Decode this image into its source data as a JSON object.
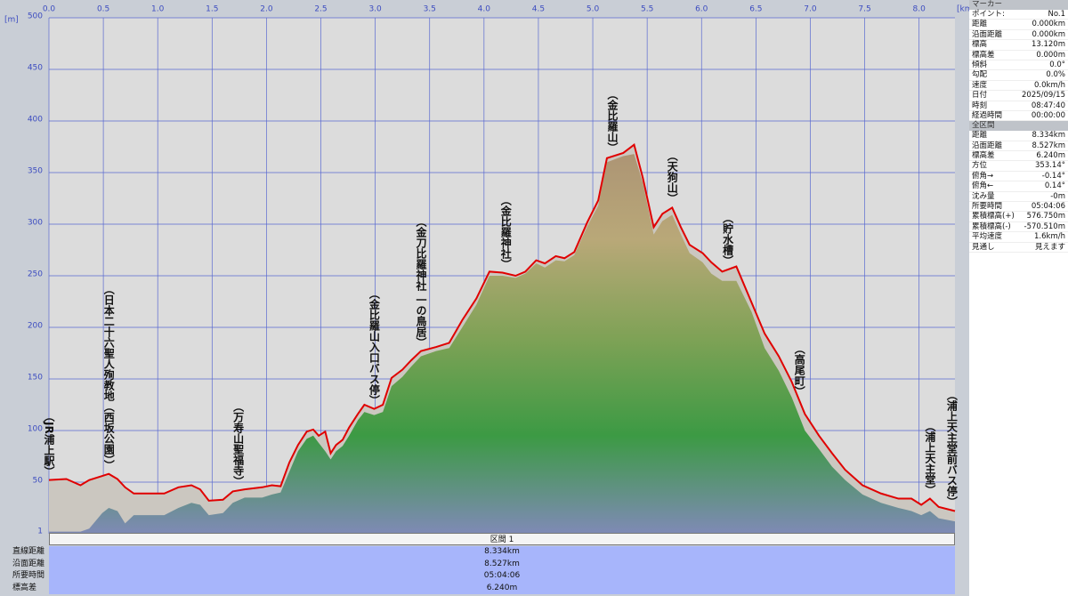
{
  "chart_data": {
    "type": "line",
    "x_unit": "[km]",
    "y_unit": "[m]",
    "x": [
      0,
      0.16,
      0.29,
      0.37,
      0.49,
      0.55,
      0.63,
      0.7,
      0.78,
      0.9,
      1.06,
      1.19,
      1.31,
      1.39,
      1.47,
      1.6,
      1.69,
      1.8,
      1.96,
      2.05,
      2.13,
      2.21,
      2.29,
      2.37,
      2.43,
      2.48,
      2.54,
      2.59,
      2.64,
      2.7,
      2.76,
      2.84,
      2.9,
      2.99,
      3.07,
      3.15,
      3.25,
      3.33,
      3.42,
      3.56,
      3.68,
      3.8,
      3.93,
      4.05,
      4.17,
      4.29,
      4.38,
      4.48,
      4.56,
      4.66,
      4.74,
      4.83,
      4.95,
      5.05,
      5.13,
      5.28,
      5.38,
      5.46,
      5.56,
      5.64,
      5.73,
      5.81,
      5.89,
      6.01,
      6.09,
      6.19,
      6.32,
      6.46,
      6.58,
      6.71,
      6.83,
      6.95,
      7.08,
      7.2,
      7.32,
      7.48,
      7.65,
      7.81,
      7.93,
      8.02,
      8.1,
      8.18,
      8.33
    ],
    "series": [
      {
        "color": "#e00000",
        "area_color": "#cbc7c0",
        "values": [
          52,
          53,
          47,
          52,
          56,
          58,
          53,
          45,
          39,
          39,
          39,
          45,
          47,
          43,
          32,
          33,
          41,
          43,
          45,
          47,
          46,
          69,
          86,
          99,
          101,
          95,
          99,
          78,
          86,
          91,
          103,
          116,
          125,
          121,
          125,
          151,
          159,
          168,
          177,
          181,
          185,
          207,
          228,
          254,
          253,
          250,
          254,
          265,
          262,
          269,
          267,
          273,
          302,
          323,
          364,
          369,
          377,
          345,
          297,
          310,
          316,
          297,
          280,
          272,
          263,
          254,
          259,
          224,
          194,
          172,
          147,
          116,
          95,
          78,
          62,
          47,
          39,
          34,
          34,
          28,
          34,
          26,
          22
        ]
      },
      {
        "color": "#3f9a45",
        "gradient": [
          "#7f8ab6",
          "#3c9a44",
          "#7fa256",
          "#b9a878",
          "#ab9274"
        ],
        "values": [
          2,
          2,
          2,
          5,
          20,
          25,
          22,
          10,
          18,
          18,
          18,
          25,
          30,
          28,
          18,
          20,
          30,
          35,
          35,
          38,
          40,
          60,
          80,
          92,
          95,
          88,
          80,
          72,
          80,
          85,
          95,
          110,
          118,
          115,
          118,
          143,
          152,
          162,
          172,
          177,
          180,
          200,
          222,
          250,
          250,
          248,
          252,
          262,
          258,
          265,
          264,
          270,
          298,
          318,
          360,
          366,
          368,
          340,
          290,
          303,
          309,
          290,
          272,
          263,
          252,
          245,
          245,
          215,
          180,
          158,
          132,
          100,
          82,
          65,
          52,
          38,
          30,
          25,
          22,
          18,
          22,
          15,
          12
        ]
      }
    ],
    "xlim": [
      0,
      8.33
    ],
    "ylim": [
      0,
      500
    ],
    "xticks": [
      {
        "value": 0,
        "label": "0.0"
      },
      0.5,
      {
        "value": 1,
        "label": "1.0"
      },
      1.5,
      {
        "value": 2,
        "label": "2.0"
      },
      2.5,
      {
        "value": 3,
        "label": "3.0"
      },
      3.5,
      {
        "value": 4,
        "label": "4.0"
      },
      4.5,
      {
        "value": 5,
        "label": "5.0"
      },
      5.5,
      {
        "value": 6,
        "label": "6.0"
      },
      6.5,
      {
        "value": 7,
        "label": "7.0"
      },
      7.5,
      {
        "value": 8,
        "label": "8.0"
      }
    ],
    "yticks": [
      1,
      50,
      100,
      150,
      200,
      250,
      300,
      350,
      400,
      450,
      500
    ],
    "grid": true,
    "grid_color": "#5a6ad0",
    "plot_color": "#dcdcdc",
    "annotations": [
      {
        "text": "（JR浦上駅）",
        "x": 0
      },
      {
        "text": "（日本二十六聖人殉教地（西坂公園））",
        "x": 0.55
      },
      {
        "text": "（万寿山聖福寺）",
        "x": 1.74
      },
      {
        "text": "（金比羅山入口バス停）",
        "x": 2.99
      },
      {
        "text": "（金刀比羅神社 一の鳥居）",
        "x": 3.42
      },
      {
        "text": "（金比羅神社）",
        "x": 4.2
      },
      {
        "text": "（金比羅山）",
        "x": 5.18
      },
      {
        "text": "（天狗山）",
        "x": 5.73
      },
      {
        "text": "（貯水槽）",
        "x": 6.24
      },
      {
        "text": "（高尾町）",
        "x": 6.9
      },
      {
        "text": "（浦上天主堂）",
        "x": 8.1
      },
      {
        "text": "（浦上天主堂前バス停）",
        "x": 8.3
      }
    ]
  },
  "marker_panel": {
    "title": "マーカー",
    "rows": [
      [
        "ポイント:",
        "No.1"
      ],
      [
        "距離",
        "0.000km"
      ],
      [
        "沿面距離",
        "0.000km"
      ],
      [
        "標高",
        "13.120m"
      ],
      [
        "標高差",
        "0.000m"
      ],
      [
        "傾斜",
        "0.0°"
      ],
      [
        "勾配",
        "0.0%"
      ],
      [
        "速度",
        "0.0km/h"
      ],
      [
        "日付",
        "2025/09/15"
      ],
      [
        "時刻",
        "08:47:40"
      ],
      [
        "経過時間",
        "00:00:00"
      ]
    ]
  },
  "total_panel": {
    "title": "全区間",
    "rows": [
      [
        "距離",
        "8.334km"
      ],
      [
        "沿面距離",
        "8.527km"
      ],
      [
        "標高差",
        "6.240m"
      ],
      [
        "方位",
        "353.14°"
      ],
      [
        "俯角→",
        "-0.14°"
      ],
      [
        "俯角←",
        "0.14°"
      ],
      [
        "沈み量",
        "-0m"
      ],
      [
        "所要時間",
        "05:04:06"
      ],
      [
        "累積標高(+)",
        "576.750m"
      ],
      [
        "累積標高(-)",
        "-570.510m"
      ],
      [
        "平均速度",
        "1.6km/h"
      ],
      [
        "見通し",
        "見えます"
      ]
    ]
  },
  "section_panel": {
    "title": "区間 1",
    "rows": [
      [
        "直線距離",
        "8.334km"
      ],
      [
        "沿面距離",
        "8.527km"
      ],
      [
        "所要時間",
        "05:04:06"
      ],
      [
        "標高差",
        "6.240m"
      ]
    ]
  }
}
